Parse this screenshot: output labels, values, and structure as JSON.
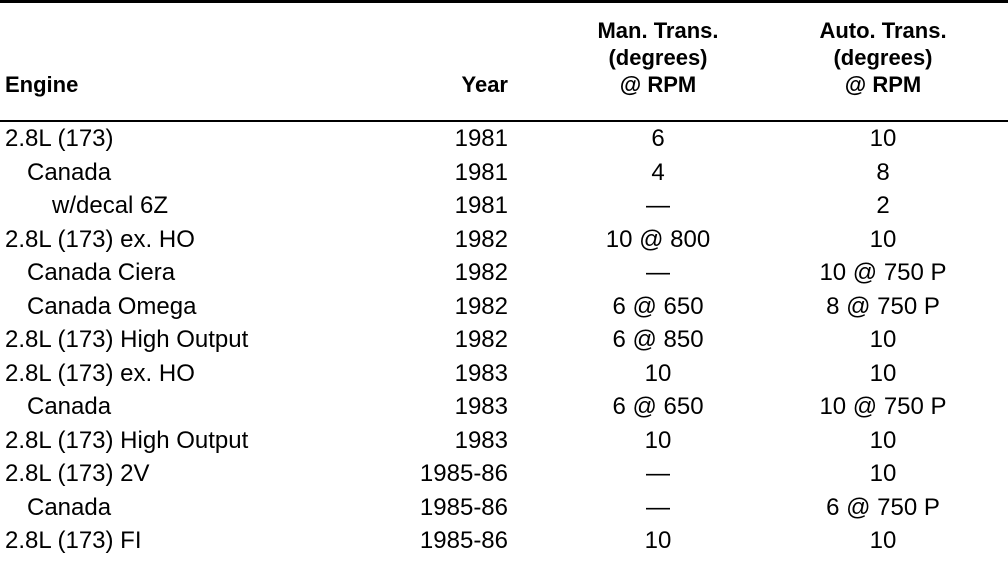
{
  "table": {
    "header": [
      "Engine",
      "Year",
      [
        "Man. Trans.",
        "(degrees)",
        "@ RPM"
      ],
      [
        "Auto. Trans.",
        "(degrees)",
        "@ RPM"
      ]
    ],
    "rows": [
      [
        "2.8L (173)",
        "1981",
        "6",
        "10"
      ],
      [
        "Canada",
        "1981",
        "4",
        "8"
      ],
      [
        "w/decal 6Z",
        "1981",
        "—",
        "2"
      ],
      [
        "2.8L (173) ex. HO",
        "1982",
        "10 @ 800",
        "10"
      ],
      [
        "Canada Ciera",
        "1982",
        "—",
        "10 @ 750 P"
      ],
      [
        "Canada Omega",
        "1982",
        "6 @ 650",
        "8 @ 750 P"
      ],
      [
        "2.8L (173) High Output",
        "1982",
        "6 @ 850",
        "10"
      ],
      [
        "2.8L (173) ex. HO",
        "1983",
        "10",
        "10"
      ],
      [
        "Canada",
        "1983",
        "6 @ 650",
        "10 @ 750 P"
      ],
      [
        "2.8L (173) High Output",
        "1983",
        "10",
        "10"
      ],
      [
        "2.8L (173) 2V",
        "1985-86",
        "—",
        "10"
      ],
      [
        "Canada",
        "1985-86",
        "—",
        "6 @ 750 P"
      ],
      [
        "2.8L (173) FI",
        "1985-86",
        "10",
        "10"
      ]
    ]
  }
}
